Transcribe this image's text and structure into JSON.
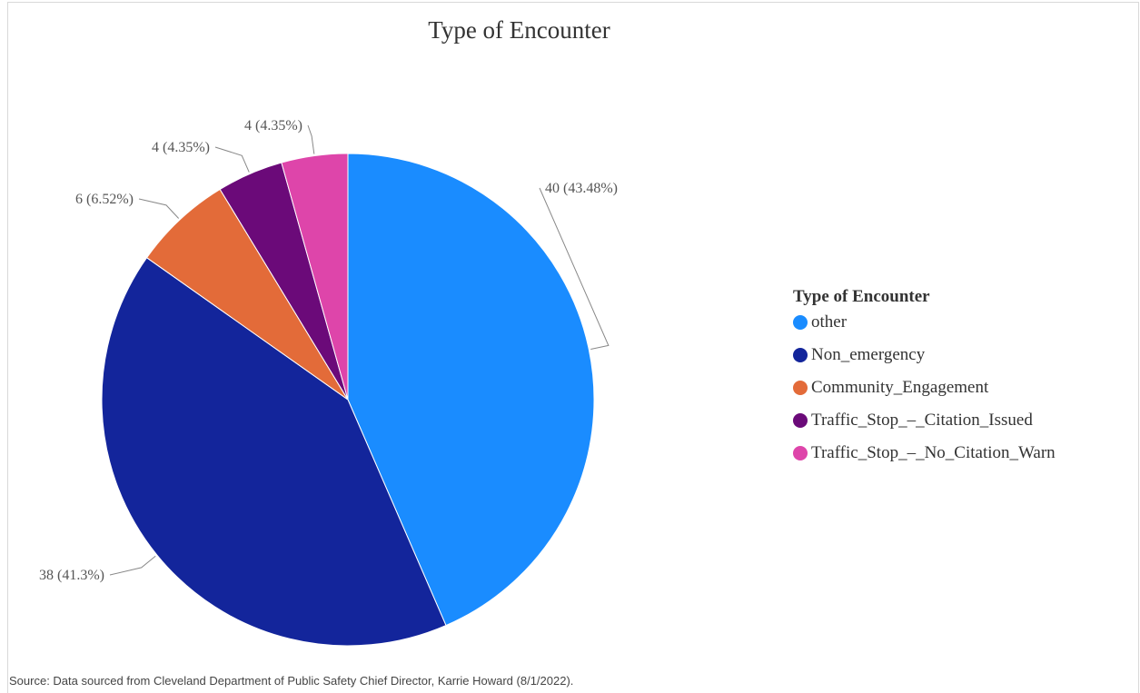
{
  "chart_data": {
    "type": "pie",
    "title": "Type of Encounter",
    "legend_title": "Type of Encounter",
    "legend_position": "right",
    "slices": [
      {
        "name": "other",
        "value": 40,
        "label": "40 (43.48%)",
        "color": "#1a8cff"
      },
      {
        "name": "Non_emergency",
        "value": 38,
        "label": "38 (41.3%)",
        "color": "#13259b"
      },
      {
        "name": "Community_Engagement",
        "value": 6,
        "label": "6 (6.52%)",
        "color": "#e36b39"
      },
      {
        "name": "Traffic_Stop_–_Citation_Issued",
        "value": 4,
        "label": "4 (4.35%)",
        "color": "#6b0a79"
      },
      {
        "name": "Traffic_Stop_–_No_Citation_Warn",
        "value": 4,
        "label": "4 (4.35%)",
        "color": "#de45aa"
      }
    ]
  },
  "source": "Source: Data sourced from Cleveland Department of Public Safety Chief Director, Karrie Howard (8/1/2022)."
}
